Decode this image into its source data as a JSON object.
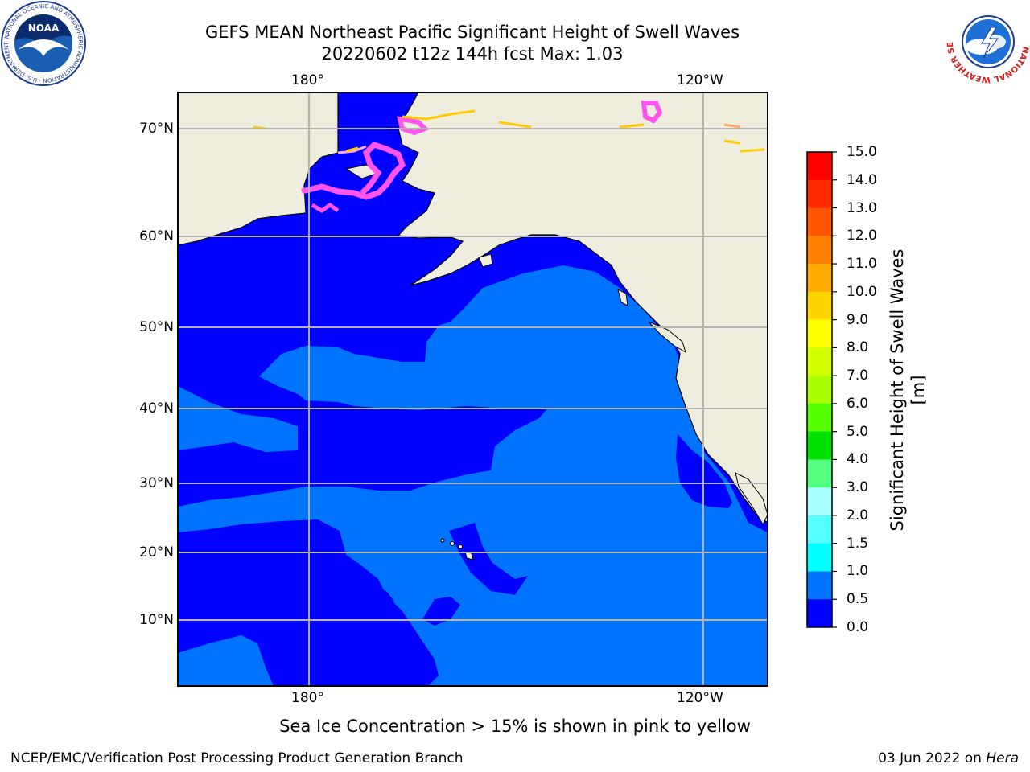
{
  "title": {
    "line1": "GEFS MEAN Northeast Pacific Significant Height of Swell Waves",
    "line2": "20220602 t12z 144h fcst   Max: 1.03"
  },
  "map": {
    "lon_labels_top": [
      "180°",
      "120°W"
    ],
    "lon_labels_bottom": [
      "180°",
      "120°W"
    ],
    "lat_labels": [
      "70°N",
      "60°N",
      "50°N",
      "40°N",
      "30°N",
      "20°N",
      "10°N"
    ],
    "colors": {
      "land": "#efedde",
      "ocean_low": "#0000ff",
      "ocean_mid": "#0074ff",
      "grid": "#b4b4b4",
      "ice_pink": "#ff55ee",
      "ice_yellow": "#ffcc00"
    }
  },
  "colorbar": {
    "title": "Significant Height of Swell Waves [m]",
    "tick_labels": [
      "15.0",
      "14.0",
      "13.0",
      "12.0",
      "11.0",
      "10.0",
      "9.0",
      "8.0",
      "7.0",
      "6.0",
      "5.0",
      "4.0",
      "3.0",
      "2.0",
      "1.5",
      "1.0",
      "0.5",
      "0.0"
    ],
    "colors": [
      "#ff0000",
      "#ff2a00",
      "#ff5500",
      "#ff8000",
      "#ffaa00",
      "#ffd500",
      "#ffff00",
      "#d4ff00",
      "#aaff00",
      "#55ff00",
      "#00e000",
      "#55ff80",
      "#aaffff",
      "#55ffff",
      "#00ffff",
      "#0074ff",
      "#0000ff"
    ]
  },
  "caption": "Sea Ice Concentration > 15% is shown in pink to yellow",
  "footer": {
    "left": "NCEP/EMC/Verification Post Processing Product Generation Branch",
    "right_date": "03 Jun 2022 on",
    "right_machine": "Hera"
  },
  "logos": {
    "left": "NOAA",
    "left_ring": "NATIONAL OCEANIC AND ATMOSPHERIC ADMINISTRATION · U.S. DEPARTMENT OF COMMERCE",
    "right_ring": "NATIONAL WEATHER SERVICE"
  }
}
